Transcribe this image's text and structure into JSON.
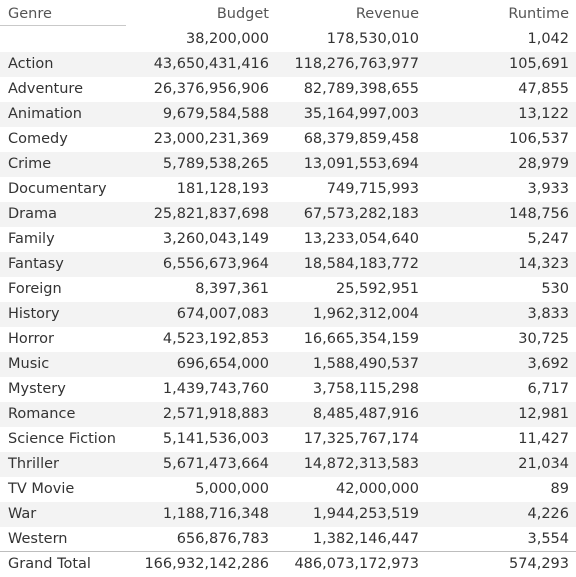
{
  "chart_data": {
    "type": "table",
    "columns": [
      "Genre",
      "Budget",
      "Revenue",
      "Runtime"
    ],
    "rows": [
      {
        "genre": "",
        "budget": "38,200,000",
        "revenue": "178,530,010",
        "runtime": "1,042"
      },
      {
        "genre": "Action",
        "budget": "43,650,431,416",
        "revenue": "118,276,763,977",
        "runtime": "105,691"
      },
      {
        "genre": "Adventure",
        "budget": "26,376,956,906",
        "revenue": "82,789,398,655",
        "runtime": "47,855"
      },
      {
        "genre": "Animation",
        "budget": "9,679,584,588",
        "revenue": "35,164,997,003",
        "runtime": "13,122"
      },
      {
        "genre": "Comedy",
        "budget": "23,000,231,369",
        "revenue": "68,379,859,458",
        "runtime": "106,537"
      },
      {
        "genre": "Crime",
        "budget": "5,789,538,265",
        "revenue": "13,091,553,694",
        "runtime": "28,979"
      },
      {
        "genre": "Documentary",
        "budget": "181,128,193",
        "revenue": "749,715,993",
        "runtime": "3,933"
      },
      {
        "genre": "Drama",
        "budget": "25,821,837,698",
        "revenue": "67,573,282,183",
        "runtime": "148,756"
      },
      {
        "genre": "Family",
        "budget": "3,260,043,149",
        "revenue": "13,233,054,640",
        "runtime": "5,247"
      },
      {
        "genre": "Fantasy",
        "budget": "6,556,673,964",
        "revenue": "18,584,183,772",
        "runtime": "14,323"
      },
      {
        "genre": "Foreign",
        "budget": "8,397,361",
        "revenue": "25,592,951",
        "runtime": "530"
      },
      {
        "genre": "History",
        "budget": "674,007,083",
        "revenue": "1,962,312,004",
        "runtime": "3,833"
      },
      {
        "genre": "Horror",
        "budget": "4,523,192,853",
        "revenue": "16,665,354,159",
        "runtime": "30,725"
      },
      {
        "genre": "Music",
        "budget": "696,654,000",
        "revenue": "1,588,490,537",
        "runtime": "3,692"
      },
      {
        "genre": "Mystery",
        "budget": "1,439,743,760",
        "revenue": "3,758,115,298",
        "runtime": "6,717"
      },
      {
        "genre": "Romance",
        "budget": "2,571,918,883",
        "revenue": "8,485,487,916",
        "runtime": "12,981"
      },
      {
        "genre": "Science Fiction",
        "budget": "5,141,536,003",
        "revenue": "17,325,767,174",
        "runtime": "11,427"
      },
      {
        "genre": "Thriller",
        "budget": "5,671,473,664",
        "revenue": "14,872,313,583",
        "runtime": "21,034"
      },
      {
        "genre": "TV Movie",
        "budget": "5,000,000",
        "revenue": "42,000,000",
        "runtime": "89"
      },
      {
        "genre": "War",
        "budget": "1,188,716,348",
        "revenue": "1,944,253,519",
        "runtime": "4,226"
      },
      {
        "genre": "Western",
        "budget": "656,876,783",
        "revenue": "1,382,146,447",
        "runtime": "3,554"
      }
    ],
    "total": {
      "genre": "Grand Total",
      "budget": "166,932,142,286",
      "revenue": "486,073,172,973",
      "runtime": "574,293"
    }
  }
}
